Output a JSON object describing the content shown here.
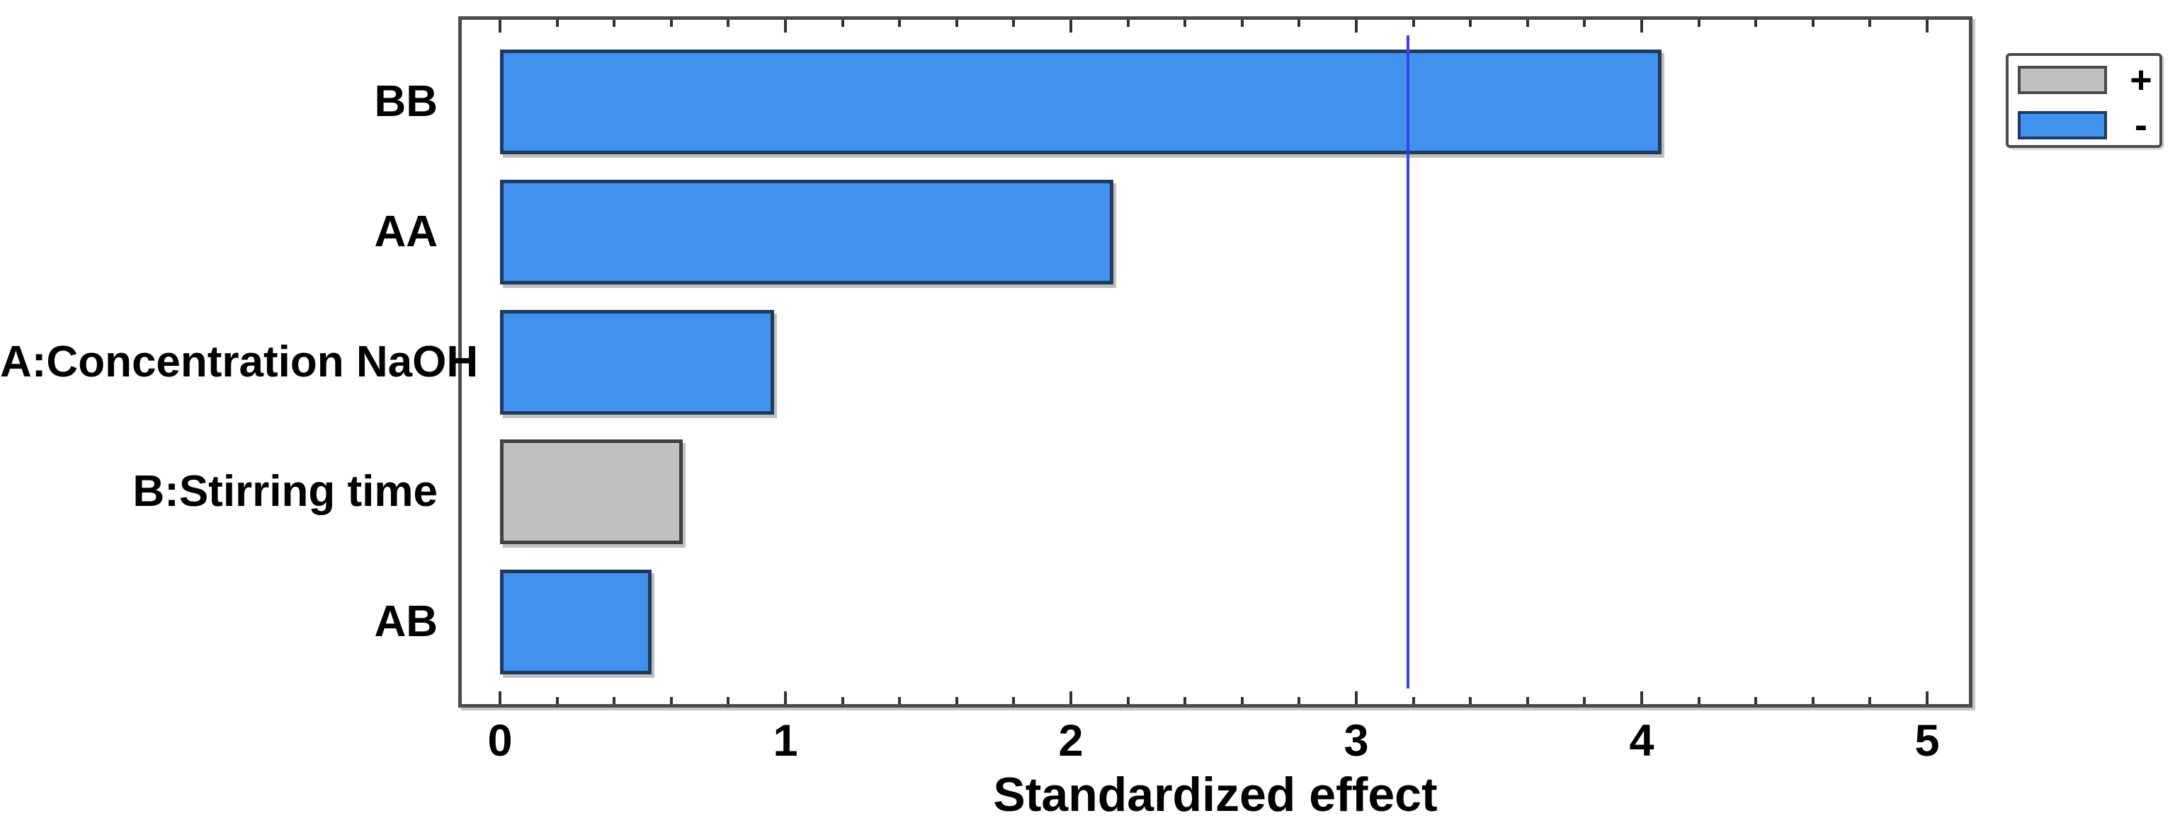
{
  "chart_data": {
    "type": "bar",
    "orientation": "horizontal",
    "title": "",
    "xlabel": "Standardized effect",
    "ylabel": "",
    "categories": [
      "BB",
      "AA",
      "A:Concentration NaOH",
      "B:Stirring time",
      "AB"
    ],
    "values": [
      4.07,
      2.15,
      0.96,
      0.64,
      0.53
    ],
    "signs": [
      "-",
      "-",
      "-",
      "+",
      "-"
    ],
    "xlim": [
      0,
      5
    ],
    "x_major_ticks": [
      0,
      1,
      2,
      3,
      4,
      5
    ],
    "x_major_tick_labels": [
      "0",
      "1",
      "2",
      "3",
      "4",
      "5"
    ],
    "x_minor_tick_step": 0.2,
    "reference_line_value": 3.18,
    "grid": false,
    "legend_position": "top-right",
    "legend": [
      {
        "label": "+",
        "color": "#C1C1C1",
        "border": "#4A4A4A",
        "meaning": "positive effect"
      },
      {
        "label": "-",
        "color": "#4092EE",
        "border": "#1F3A5E",
        "meaning": "negative effect"
      }
    ],
    "colors": {
      "positive_fill": "#C1C1C1",
      "positive_border": "#3F3F3F",
      "negative_fill": "#4092EE",
      "negative_border": "#1F3A5E",
      "reference_line": "#3C3CF0",
      "frame": "#4B4B4B",
      "tick": "#333333",
      "text": "#000000"
    }
  }
}
